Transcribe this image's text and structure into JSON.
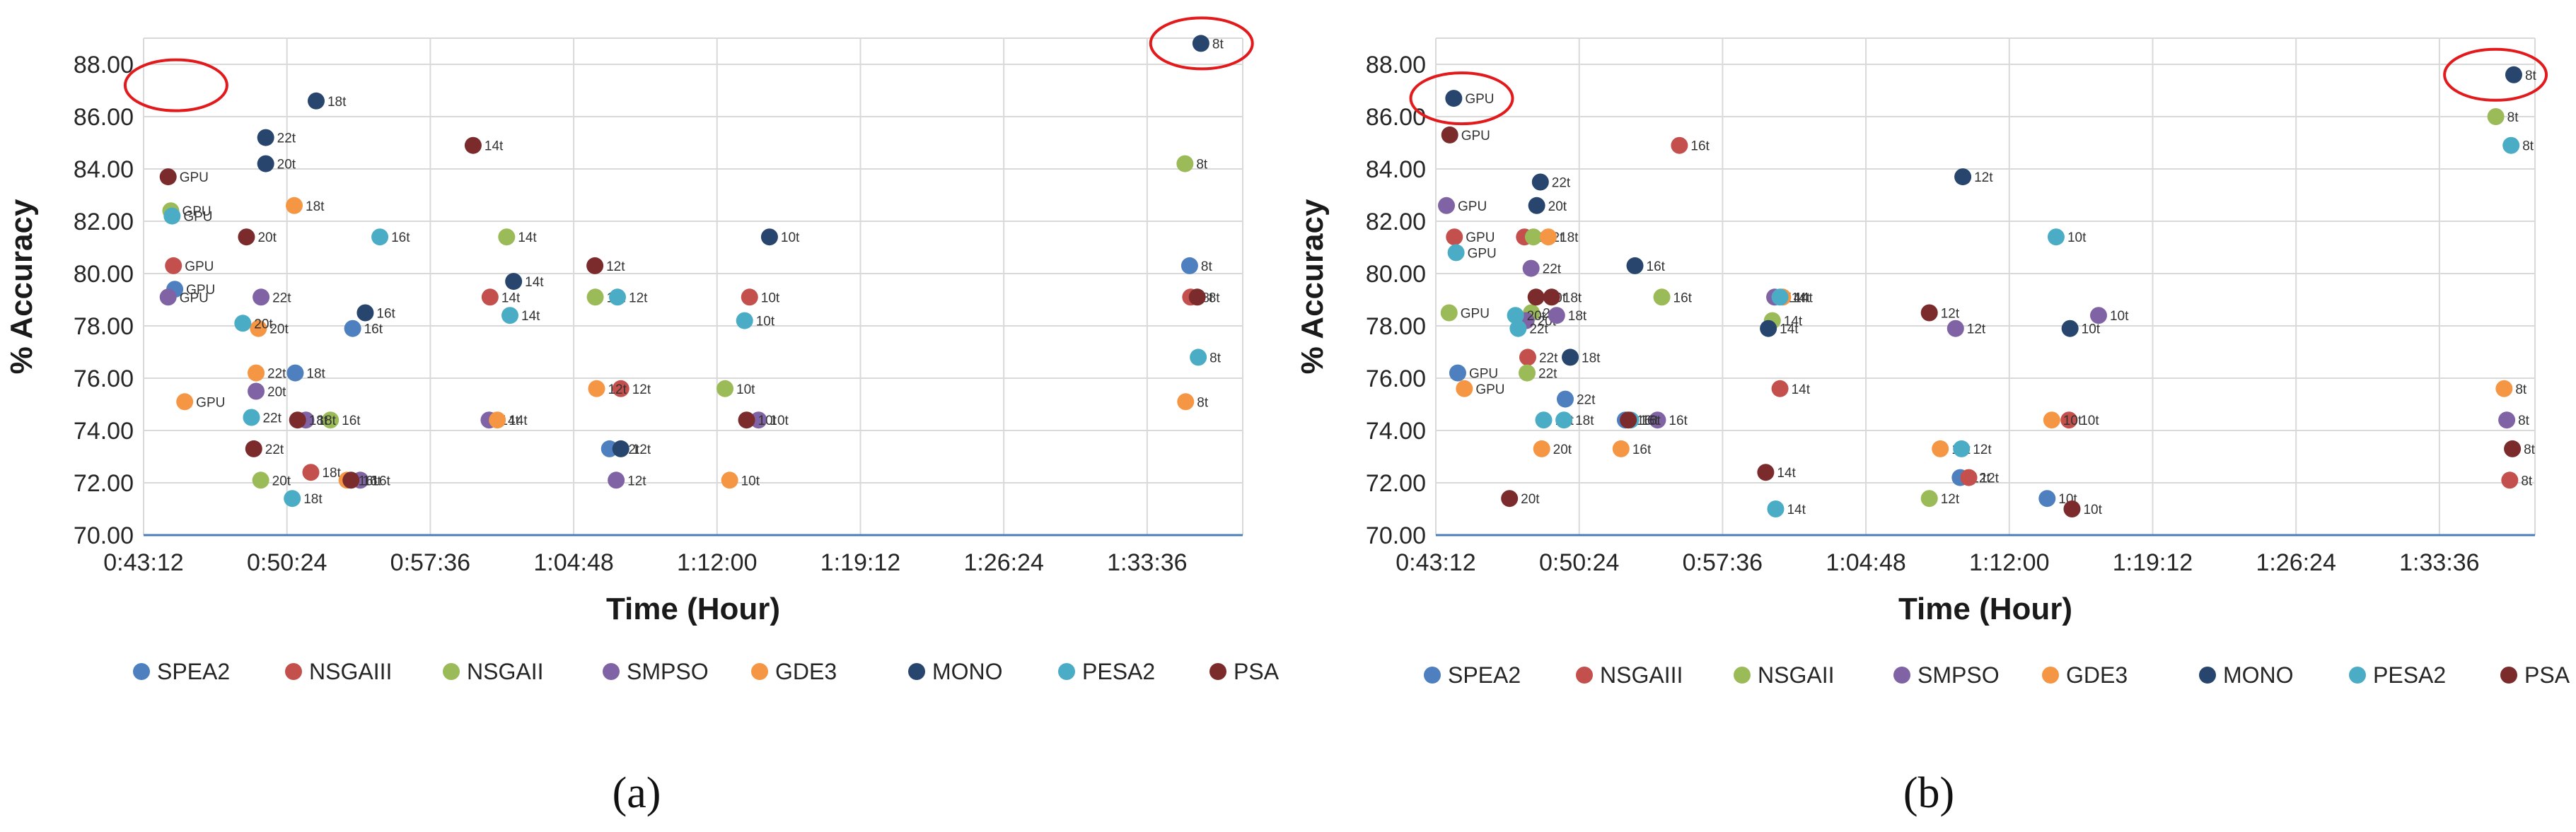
{
  "figure": {
    "captions": [
      "(a)",
      "(b)"
    ],
    "legend": [
      {
        "name": "SPEA2",
        "color": "#4e7fbe"
      },
      {
        "name": "NSGAIII",
        "color": "#c3504d"
      },
      {
        "name": "NSGAII",
        "color": "#9bbb59"
      },
      {
        "name": "SMPSO",
        "color": "#8063a4"
      },
      {
        "name": "GDE3",
        "color": "#f59645"
      },
      {
        "name": "MONO",
        "color": "#27456d"
      },
      {
        "name": "PESA2",
        "color": "#4bacc6"
      },
      {
        "name": "PSA",
        "color": "#7b2b2b"
      }
    ],
    "highlight_color": "#e31a1c"
  },
  "chart_data": [
    {
      "type": "scatter",
      "title": "",
      "xlabel": "Time (Hour)",
      "ylabel": "% Accuracy",
      "xlim": [
        2592,
        5904
      ],
      "ylim": [
        70,
        89
      ],
      "x_ticks": [
        "0:43:12",
        "0:50:24",
        "0:57:36",
        "1:04:48",
        "1:12:00",
        "1:19:12",
        "1:26:24",
        "1:33:36"
      ],
      "y_ticks": [
        "70.00",
        "72.00",
        "74.00",
        "76.00",
        "78.00",
        "80.00",
        "82.00",
        "84.00",
        "86.00",
        "88.00"
      ],
      "highlight": [
        {
          "x": 2660,
          "y": 87.2
        },
        {
          "x": 5750,
          "y": 88.8
        }
      ],
      "series": [
        {
          "name": "SPEA2",
          "points": [
            {
              "x": 2686,
              "y": 79.4,
              "label": "GPU"
            },
            {
              "x": 3049,
              "y": 76.2,
              "label": "18t"
            },
            {
              "x": 3222,
              "y": 77.9,
              "label": "16t"
            },
            {
              "x": 3996,
              "y": 73.3,
              "label": "12t"
            },
            {
              "x": 5744,
              "y": 80.3,
              "label": "8t"
            }
          ]
        },
        {
          "name": "NSGAIII",
          "points": [
            {
              "x": 2682,
              "y": 80.3,
              "label": "GPU"
            },
            {
              "x": 3096,
              "y": 72.4,
              "label": "18t"
            },
            {
              "x": 3636,
              "y": 79.1,
              "label": "14t"
            },
            {
              "x": 4030,
              "y": 75.6,
              "label": "12t"
            },
            {
              "x": 4418,
              "y": 79.1,
              "label": "10t"
            },
            {
              "x": 5747,
              "y": 79.1,
              "label": "8t"
            }
          ]
        },
        {
          "name": "NSGAII",
          "points": [
            {
              "x": 2674,
              "y": 82.4,
              "label": "GPU"
            },
            {
              "x": 2945,
              "y": 72.1,
              "label": "20t"
            },
            {
              "x": 3155,
              "y": 74.4,
              "label": "16t"
            },
            {
              "x": 3686,
              "y": 81.4,
              "label": "14t"
            },
            {
              "x": 3953,
              "y": 79.1,
              "label": "12t"
            },
            {
              "x": 4344,
              "y": 75.6,
              "label": "10t"
            },
            {
              "x": 5730,
              "y": 84.2,
              "label": "8t"
            }
          ]
        },
        {
          "name": "SMPSO",
          "points": [
            {
              "x": 2666,
              "y": 79.1,
              "label": "GPU"
            },
            {
              "x": 2946,
              "y": 79.1,
              "label": "22t"
            },
            {
              "x": 2931,
              "y": 75.5,
              "label": "20t"
            },
            {
              "x": 3081,
              "y": 74.4,
              "label": "18t"
            },
            {
              "x": 3245,
              "y": 72.1,
              "label": "16t"
            },
            {
              "x": 3633,
              "y": 74.4,
              "label": "14t"
            },
            {
              "x": 4016,
              "y": 72.1,
              "label": "12t"
            },
            {
              "x": 4445,
              "y": 74.4,
              "label": "10t"
            }
          ]
        },
        {
          "name": "GDE3",
          "points": [
            {
              "x": 2716,
              "y": 75.1,
              "label": "GPU"
            },
            {
              "x": 2931,
              "y": 76.2,
              "label": "22t"
            },
            {
              "x": 2938,
              "y": 77.9,
              "label": "20t"
            },
            {
              "x": 3046,
              "y": 82.6,
              "label": "18t"
            },
            {
              "x": 3205,
              "y": 72.1,
              "label": "16t"
            },
            {
              "x": 3658,
              "y": 74.4,
              "label": "14t"
            },
            {
              "x": 3957,
              "y": 75.6,
              "label": "12t"
            },
            {
              "x": 4358,
              "y": 72.1,
              "label": "10t"
            },
            {
              "x": 5732,
              "y": 75.1,
              "label": "8t"
            }
          ]
        },
        {
          "name": "MONO",
          "points": [
            {
              "x": 2960,
              "y": 85.2,
              "label": "22t"
            },
            {
              "x": 2960,
              "y": 84.2,
              "label": "20t"
            },
            {
              "x": 3112,
              "y": 86.6,
              "label": "18t"
            },
            {
              "x": 3260,
              "y": 78.5,
              "label": "16t"
            },
            {
              "x": 3707,
              "y": 79.7,
              "label": "14t"
            },
            {
              "x": 4030,
              "y": 73.3,
              "label": "12t"
            },
            {
              "x": 4478,
              "y": 81.4,
              "label": "10t"
            },
            {
              "x": 5778,
              "y": 88.8,
              "label": "8t"
            }
          ]
        },
        {
          "name": "PESA2",
          "points": [
            {
              "x": 2678,
              "y": 82.2,
              "label": "GPU"
            },
            {
              "x": 2891,
              "y": 78.1,
              "label": "20t"
            },
            {
              "x": 2917,
              "y": 74.5,
              "label": "22t"
            },
            {
              "x": 3040,
              "y": 71.4,
              "label": "18t"
            },
            {
              "x": 3304,
              "y": 81.4,
              "label": "16t"
            },
            {
              "x": 3696,
              "y": 78.4,
              "label": "14t"
            },
            {
              "x": 4020,
              "y": 79.1,
              "label": "12t"
            },
            {
              "x": 4403,
              "y": 78.2,
              "label": "10t"
            },
            {
              "x": 5770,
              "y": 76.8,
              "label": "8t"
            }
          ]
        },
        {
          "name": "PSA",
          "points": [
            {
              "x": 2666,
              "y": 83.7,
              "label": "GPU"
            },
            {
              "x": 2902,
              "y": 81.4,
              "label": "20t"
            },
            {
              "x": 2924,
              "y": 73.3,
              "label": "22t"
            },
            {
              "x": 3056,
              "y": 74.4,
              "label": "18t"
            },
            {
              "x": 3217,
              "y": 72.1,
              "label": "16t"
            },
            {
              "x": 3585,
              "y": 84.9,
              "label": "14t"
            },
            {
              "x": 3952,
              "y": 80.3,
              "label": "12t"
            },
            {
              "x": 4409,
              "y": 74.4,
              "label": "10t"
            },
            {
              "x": 5767,
              "y": 79.1,
              "label": "8t"
            }
          ]
        }
      ]
    },
    {
      "type": "scatter",
      "title": "",
      "xlabel": "Time (Hour)",
      "ylabel": "% Accuracy",
      "xlim": [
        2592,
        5904
      ],
      "ylim": [
        70,
        89
      ],
      "x_ticks": [
        "0:43:12",
        "0:50:24",
        "0:57:36",
        "1:04:48",
        "1:12:00",
        "1:19:12",
        "1:26:24",
        "1:33:36"
      ],
      "y_ticks": [
        "70.00",
        "72.00",
        "74.00",
        "76.00",
        "78.00",
        "80.00",
        "82.00",
        "84.00",
        "86.00",
        "88.00"
      ],
      "highlight": [
        {
          "x": 2640,
          "y": 86.7
        },
        {
          "x": 5755,
          "y": 87.6
        }
      ],
      "series": [
        {
          "name": "SPEA2",
          "points": [
            {
              "x": 2658,
              "y": 76.2,
              "label": "GPU"
            },
            {
              "x": 2982,
              "y": 75.2,
              "label": "22t"
            },
            {
              "x": 3163,
              "y": 74.4,
              "label": "16t"
            },
            {
              "x": 4172,
              "y": 72.2,
              "label": "12t"
            },
            {
              "x": 4434,
              "y": 71.4,
              "label": "10t"
            }
          ]
        },
        {
          "name": "NSGAIII",
          "points": [
            {
              "x": 2648,
              "y": 81.4,
              "label": "GPU"
            },
            {
              "x": 2859,
              "y": 81.4,
              "label": "20t"
            },
            {
              "x": 2869,
              "y": 76.8,
              "label": "22t"
            },
            {
              "x": 3326,
              "y": 84.9,
              "label": "16t"
            },
            {
              "x": 3629,
              "y": 75.6,
              "label": "14t"
            },
            {
              "x": 4198,
              "y": 72.2,
              "label": "12t"
            },
            {
              "x": 4500,
              "y": 74.4,
              "label": "10t"
            },
            {
              "x": 5828,
              "y": 72.1,
              "label": "8t"
            }
          ]
        },
        {
          "name": "NSGAII",
          "points": [
            {
              "x": 2632,
              "y": 78.5,
              "label": "GPU"
            },
            {
              "x": 2886,
              "y": 81.4,
              "label": "22t"
            },
            {
              "x": 2880,
              "y": 78.5,
              "label": "20t"
            },
            {
              "x": 2867,
              "y": 76.2,
              "label": "22t"
            },
            {
              "x": 3273,
              "y": 79.1,
              "label": "16t"
            },
            {
              "x": 3606,
              "y": 78.2,
              "label": "14t"
            },
            {
              "x": 4079,
              "y": 71.4,
              "label": "12t"
            },
            {
              "x": 5786,
              "y": 86.0,
              "label": "8t"
            }
          ]
        },
        {
          "name": "SMPSO",
          "points": [
            {
              "x": 2624,
              "y": 82.6,
              "label": "GPU"
            },
            {
              "x": 2879,
              "y": 80.2,
              "label": "22t"
            },
            {
              "x": 2864,
              "y": 78.2,
              "label": "20t"
            },
            {
              "x": 2956,
              "y": 78.4,
              "label": "18t"
            },
            {
              "x": 3260,
              "y": 74.4,
              "label": "16t"
            },
            {
              "x": 3613,
              "y": 79.1,
              "label": "14t"
            },
            {
              "x": 4158,
              "y": 77.9,
              "label": "12t"
            },
            {
              "x": 4589,
              "y": 78.4,
              "label": "10t"
            },
            {
              "x": 5819,
              "y": 74.4,
              "label": "8t"
            }
          ]
        },
        {
          "name": "GDE3",
          "points": [
            {
              "x": 2678,
              "y": 75.6,
              "label": "GPU"
            },
            {
              "x": 2911,
              "y": 73.3,
              "label": "20t"
            },
            {
              "x": 2931,
              "y": 81.4,
              "label": "18t"
            },
            {
              "x": 3150,
              "y": 73.3,
              "label": "16t"
            },
            {
              "x": 3637,
              "y": 79.1,
              "label": "14t"
            },
            {
              "x": 4112,
              "y": 73.3,
              "label": "12t"
            },
            {
              "x": 4448,
              "y": 74.4,
              "label": "10t"
            },
            {
              "x": 5811,
              "y": 75.6,
              "label": "8t"
            }
          ]
        },
        {
          "name": "MONO",
          "points": [
            {
              "x": 2646,
              "y": 86.7,
              "label": "GPU"
            },
            {
              "x": 2907,
              "y": 83.5,
              "label": "22t"
            },
            {
              "x": 2896,
              "y": 82.6,
              "label": "20t"
            },
            {
              "x": 2997,
              "y": 76.8,
              "label": "18t"
            },
            {
              "x": 3192,
              "y": 80.3,
              "label": "16t"
            },
            {
              "x": 3594,
              "y": 77.9,
              "label": "14t"
            },
            {
              "x": 4180,
              "y": 83.7,
              "label": "12t"
            },
            {
              "x": 4503,
              "y": 77.9,
              "label": "10t"
            },
            {
              "x": 5840,
              "y": 87.6,
              "label": "8t"
            }
          ]
        },
        {
          "name": "PESA2",
          "points": [
            {
              "x": 2653,
              "y": 80.8,
              "label": "GPU"
            },
            {
              "x": 2832,
              "y": 78.4,
              "label": "20t"
            },
            {
              "x": 2840,
              "y": 77.9,
              "label": "22t"
            },
            {
              "x": 2917,
              "y": 74.4,
              "label": "18t"
            },
            {
              "x": 2978,
              "y": 74.4,
              "label": "18t"
            },
            {
              "x": 3179,
              "y": 74.4,
              "label": "16t"
            },
            {
              "x": 3629,
              "y": 79.1,
              "label": "14t"
            },
            {
              "x": 3616,
              "y": 71.0,
              "label": "14t"
            },
            {
              "x": 4176,
              "y": 73.3,
              "label": "12t"
            },
            {
              "x": 4461,
              "y": 81.4,
              "label": "10t"
            },
            {
              "x": 5832,
              "y": 84.9,
              "label": "8t"
            }
          ]
        },
        {
          "name": "PSA",
          "points": [
            {
              "x": 2634,
              "y": 85.3,
              "label": "GPU"
            },
            {
              "x": 2814,
              "y": 71.4,
              "label": "20t"
            },
            {
              "x": 2894,
              "y": 79.1,
              "label": "20t"
            },
            {
              "x": 2941,
              "y": 79.1,
              "label": "18t"
            },
            {
              "x": 3172,
              "y": 74.4,
              "label": "16t"
            },
            {
              "x": 3586,
              "y": 72.4,
              "label": "14t"
            },
            {
              "x": 4079,
              "y": 78.5,
              "label": "12t"
            },
            {
              "x": 4509,
              "y": 71.0,
              "label": "10t"
            },
            {
              "x": 5836,
              "y": 73.3,
              "label": "8t"
            }
          ]
        }
      ]
    }
  ]
}
